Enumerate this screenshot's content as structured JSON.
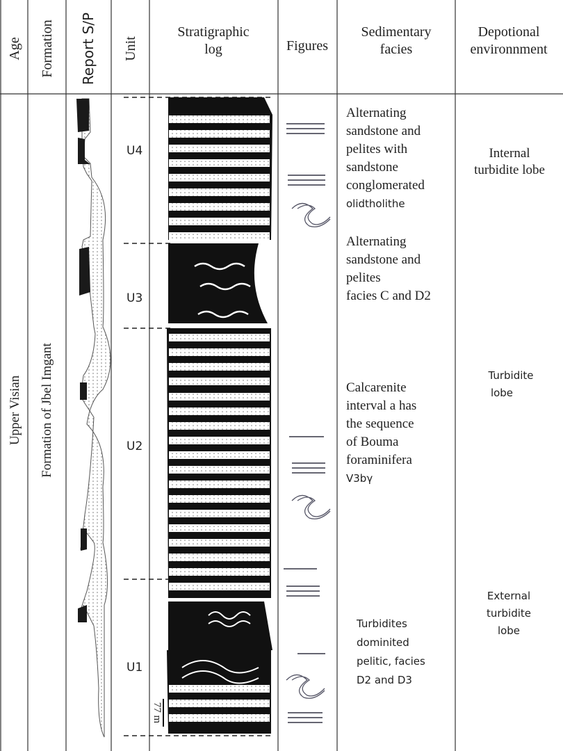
{
  "header": {
    "columns": [
      "Age",
      "Formation",
      "Report S/P",
      "Unit",
      "Stratigraphic log",
      "Figures",
      "Sedimentary facies",
      "Depotional environnment"
    ]
  },
  "age": "Upper Visian",
  "formation": "Formation of Jbel Imgant",
  "units": [
    "U4",
    "U3",
    "U2",
    "U1"
  ],
  "scale": "77 m",
  "facies": [
    [
      "Alternating",
      "sandstone and",
      "pelites with",
      "sandstone",
      "conglomerated",
      "olidtholithe"
    ],
    [
      "Alternating",
      "sandstone and",
      "pelites",
      "facies C and D2"
    ],
    [
      "Calcarenite",
      "interval a has",
      "the sequence",
      "of Bouma",
      "foraminifera",
      "V3bγ"
    ],
    [
      "Turbidites",
      "dominited",
      "pelitic, facies",
      "D2 and D3"
    ]
  ],
  "environments": [
    [
      "Internal",
      "turbidite lobe"
    ],
    [
      "Turbidite",
      "lobe"
    ],
    [
      "External",
      "turbidite",
      "lobe"
    ]
  ]
}
